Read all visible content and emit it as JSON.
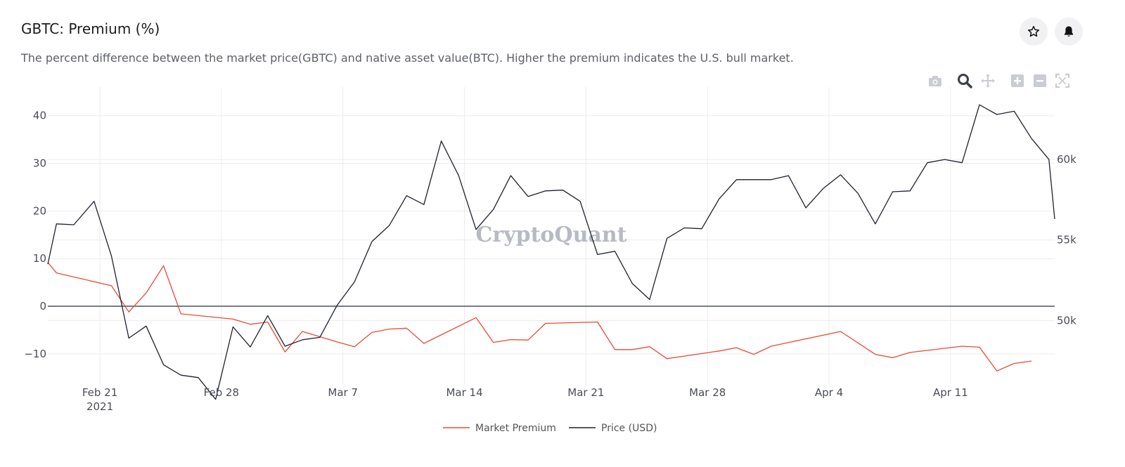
{
  "header": {
    "title": "GBTC: Premium (%)",
    "description": "The percent difference between the market price(GBTC) and native asset value(BTC). Higher the premium indicates the U.S. bull market.",
    "star_icon": "star-icon",
    "bell_icon": "bell-icon"
  },
  "modebar": [
    "camera-icon",
    "zoom-icon",
    "pan-icon",
    "zoom-in-icon",
    "zoom-out-icon",
    "autoscale-icon"
  ],
  "watermark": "CryptoQuant",
  "colors": {
    "premium": "#ea4a35",
    "price": "#1e2130",
    "zero": "#3a4050",
    "grid": "#ececef"
  },
  "chart_data": {
    "type": "line",
    "x_ticks": [
      {
        "date": "2021-02-21",
        "label": "Feb 21",
        "sublabel": "2021"
      },
      {
        "date": "2021-02-28",
        "label": "Feb 28",
        "sublabel": ""
      },
      {
        "date": "2021-03-07",
        "label": "Mar 7",
        "sublabel": ""
      },
      {
        "date": "2021-03-14",
        "label": "Mar 14",
        "sublabel": ""
      },
      {
        "date": "2021-03-21",
        "label": "Mar 21",
        "sublabel": ""
      },
      {
        "date": "2021-03-28",
        "label": "Mar 28",
        "sublabel": ""
      },
      {
        "date": "2021-04-04",
        "label": "Apr 4",
        "sublabel": ""
      },
      {
        "date": "2021-04-11",
        "label": "Apr 11",
        "sublabel": ""
      }
    ],
    "xlim": [
      "2021-02-18",
      "2021-04-17"
    ],
    "y_left": {
      "range": [
        -16.5,
        46
      ],
      "ticks": [
        40,
        30,
        20,
        10,
        0,
        -10
      ],
      "tick_labels": [
        "40",
        "30",
        "20",
        "10",
        "0",
        "−10"
      ]
    },
    "y_right": {
      "range": [
        46000,
        64500
      ],
      "ticks": [
        60000,
        55000,
        50000
      ],
      "tick_labels": [
        "60k",
        "55k",
        "50k"
      ]
    },
    "grid": true,
    "legend_position": "bottom-center",
    "series": [
      {
        "name": "Market Premium",
        "axis": "left",
        "points": [
          [
            "2021-02-18",
            9.2
          ],
          [
            "2021-02-18T12:00",
            7.0
          ],
          [
            "2021-02-21T16:00",
            4.3
          ],
          [
            "2021-02-22T16:00",
            -1.2
          ],
          [
            "2021-02-23T16:00",
            2.8
          ],
          [
            "2021-02-24T16:00",
            8.5
          ],
          [
            "2021-02-25T16:00",
            -1.6
          ],
          [
            "2021-02-28T16:00",
            -2.7
          ],
          [
            "2021-03-01T16:00",
            -3.8
          ],
          [
            "2021-03-02T16:00",
            -3.3
          ],
          [
            "2021-03-03T16:00",
            -9.6
          ],
          [
            "2021-03-04T16:00",
            -5.3
          ],
          [
            "2021-03-06T16:00",
            -7.5
          ],
          [
            "2021-03-07T16:00",
            -8.5
          ],
          [
            "2021-03-08T16:00",
            -5.5
          ],
          [
            "2021-03-09T16:00",
            -4.8
          ],
          [
            "2021-03-10T16:00",
            -4.6
          ],
          [
            "2021-03-11T16:00",
            -7.8
          ],
          [
            "2021-03-14T16:00",
            -2.4
          ],
          [
            "2021-03-15T16:00",
            -7.6
          ],
          [
            "2021-03-16T16:00",
            -7.0
          ],
          [
            "2021-03-17T16:00",
            -7.1
          ],
          [
            "2021-03-18T16:00",
            -3.6
          ],
          [
            "2021-03-21T16:00",
            -3.3
          ],
          [
            "2021-03-22T16:00",
            -9.1
          ],
          [
            "2021-03-23T16:00",
            -9.1
          ],
          [
            "2021-03-24T16:00",
            -8.5
          ],
          [
            "2021-03-25T16:00",
            -11.0
          ],
          [
            "2021-03-28T16:00",
            -9.4
          ],
          [
            "2021-03-29T16:00",
            -8.7
          ],
          [
            "2021-03-30T16:00",
            -10.1
          ],
          [
            "2021-03-31T16:00",
            -8.4
          ],
          [
            "2021-04-04T16:00",
            -5.3
          ],
          [
            "2021-04-06T16:00",
            -10.1
          ],
          [
            "2021-04-07T16:00",
            -10.8
          ],
          [
            "2021-04-08T16:00",
            -9.7
          ],
          [
            "2021-04-11T16:00",
            -8.4
          ],
          [
            "2021-04-12T16:00",
            -8.6
          ],
          [
            "2021-04-13T16:00",
            -13.6
          ],
          [
            "2021-04-14T16:00",
            -12.0
          ],
          [
            "2021-04-15T16:00",
            -11.5
          ]
        ]
      },
      {
        "name": "Price (USD)",
        "axis": "right",
        "points": [
          [
            "2021-02-18",
            53500
          ],
          [
            "2021-02-18T12:00",
            56000
          ],
          [
            "2021-02-19T12:00",
            55950
          ],
          [
            "2021-02-20T16:00",
            57400
          ],
          [
            "2021-02-21T16:00",
            54000
          ],
          [
            "2021-02-22T16:00",
            48900
          ],
          [
            "2021-02-23T16:00",
            49650
          ],
          [
            "2021-02-24T16:00",
            47250
          ],
          [
            "2021-02-25T16:00",
            46600
          ],
          [
            "2021-02-26T16:00",
            46450
          ],
          [
            "2021-02-27T16:00",
            45100
          ],
          [
            "2021-02-28T16:00",
            49600
          ],
          [
            "2021-03-01T16:00",
            48350
          ],
          [
            "2021-03-02T16:00",
            50300
          ],
          [
            "2021-03-03T16:00",
            48400
          ],
          [
            "2021-03-04T16:00",
            48800
          ],
          [
            "2021-03-05T16:00",
            48950
          ],
          [
            "2021-03-06T16:00",
            50950
          ],
          [
            "2021-03-07T16:00",
            52400
          ],
          [
            "2021-03-08T16:00",
            54900
          ],
          [
            "2021-03-09T16:00",
            55900
          ],
          [
            "2021-03-10T16:00",
            57750
          ],
          [
            "2021-03-11T16:00",
            57200
          ],
          [
            "2021-03-12T16:00",
            61150
          ],
          [
            "2021-03-13T16:00",
            59000
          ],
          [
            "2021-03-14T16:00",
            55650
          ],
          [
            "2021-03-15T16:00",
            56900
          ],
          [
            "2021-03-16T16:00",
            59000
          ],
          [
            "2021-03-17T16:00",
            57700
          ],
          [
            "2021-03-18T16:00",
            58050
          ],
          [
            "2021-03-19T16:00",
            58100
          ],
          [
            "2021-03-20T16:00",
            57400
          ],
          [
            "2021-03-21T16:00",
            54100
          ],
          [
            "2021-03-22T16:00",
            54300
          ],
          [
            "2021-03-23T16:00",
            52300
          ],
          [
            "2021-03-24T16:00",
            51300
          ],
          [
            "2021-03-25T16:00",
            55100
          ],
          [
            "2021-03-26T16:00",
            55750
          ],
          [
            "2021-03-27T16:00",
            55700
          ],
          [
            "2021-03-28T16:00",
            57550
          ],
          [
            "2021-03-29T16:00",
            58750
          ],
          [
            "2021-03-31T16:00",
            58750
          ],
          [
            "2021-04-01T16:00",
            59000
          ],
          [
            "2021-04-02T16:00",
            57000
          ],
          [
            "2021-04-03T16:00",
            58200
          ],
          [
            "2021-04-04T16:00",
            59050
          ],
          [
            "2021-04-05T16:00",
            57900
          ],
          [
            "2021-04-06T16:00",
            56000
          ],
          [
            "2021-04-07T16:00",
            58000
          ],
          [
            "2021-04-08T16:00",
            58050
          ],
          [
            "2021-04-09T16:00",
            59800
          ],
          [
            "2021-04-10T16:00",
            60000
          ],
          [
            "2021-04-11T16:00",
            59800
          ],
          [
            "2021-04-12T16:00",
            63400
          ],
          [
            "2021-04-13T16:00",
            62800
          ],
          [
            "2021-04-14T16:00",
            63000
          ],
          [
            "2021-04-15T16:00",
            61300
          ],
          [
            "2021-04-16T16:00",
            60000
          ],
          [
            "2021-04-17",
            56300
          ]
        ]
      }
    ]
  }
}
